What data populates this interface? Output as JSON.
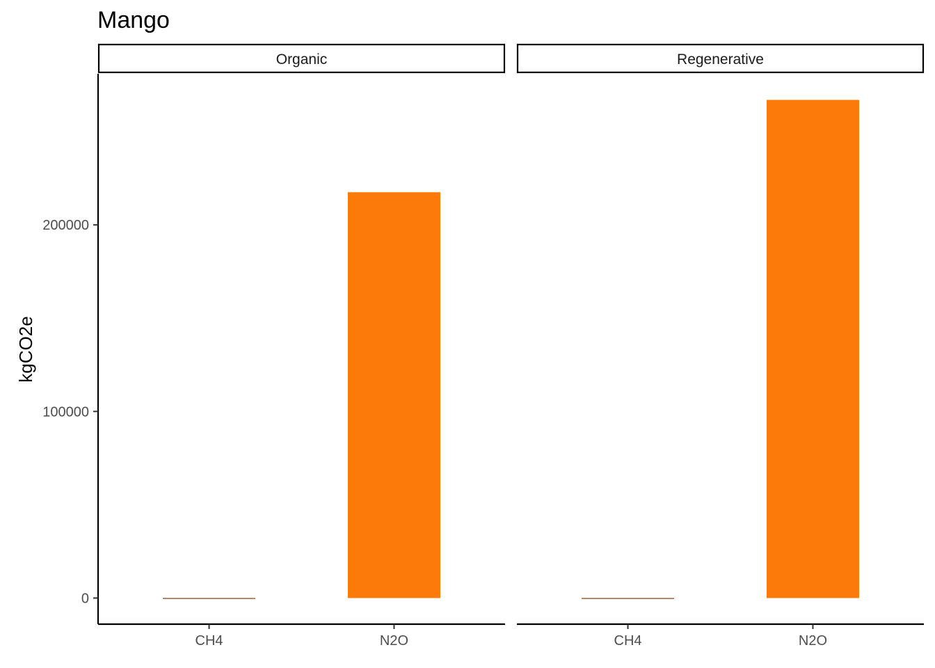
{
  "chart_data": {
    "type": "bar",
    "title": "Mango",
    "xlabel": "",
    "ylabel": "kgCO2e",
    "ylim": [
      -14000,
      281000
    ],
    "yticks": [
      0,
      100000,
      200000
    ],
    "ytick_labels": [
      "0",
      "100000",
      "200000"
    ],
    "categories": [
      "CH4",
      "N2O"
    ],
    "panels": [
      {
        "name": "Organic",
        "values": [
          -300,
          217500
        ],
        "colors": [
          "#7f3b08",
          "#fb7a09"
        ]
      },
      {
        "name": "Regenerative",
        "values": [
          -150,
          267000
        ],
        "colors": [
          "#7f3b08",
          "#fb7a09"
        ]
      }
    ],
    "grid": false,
    "legend": "none"
  }
}
